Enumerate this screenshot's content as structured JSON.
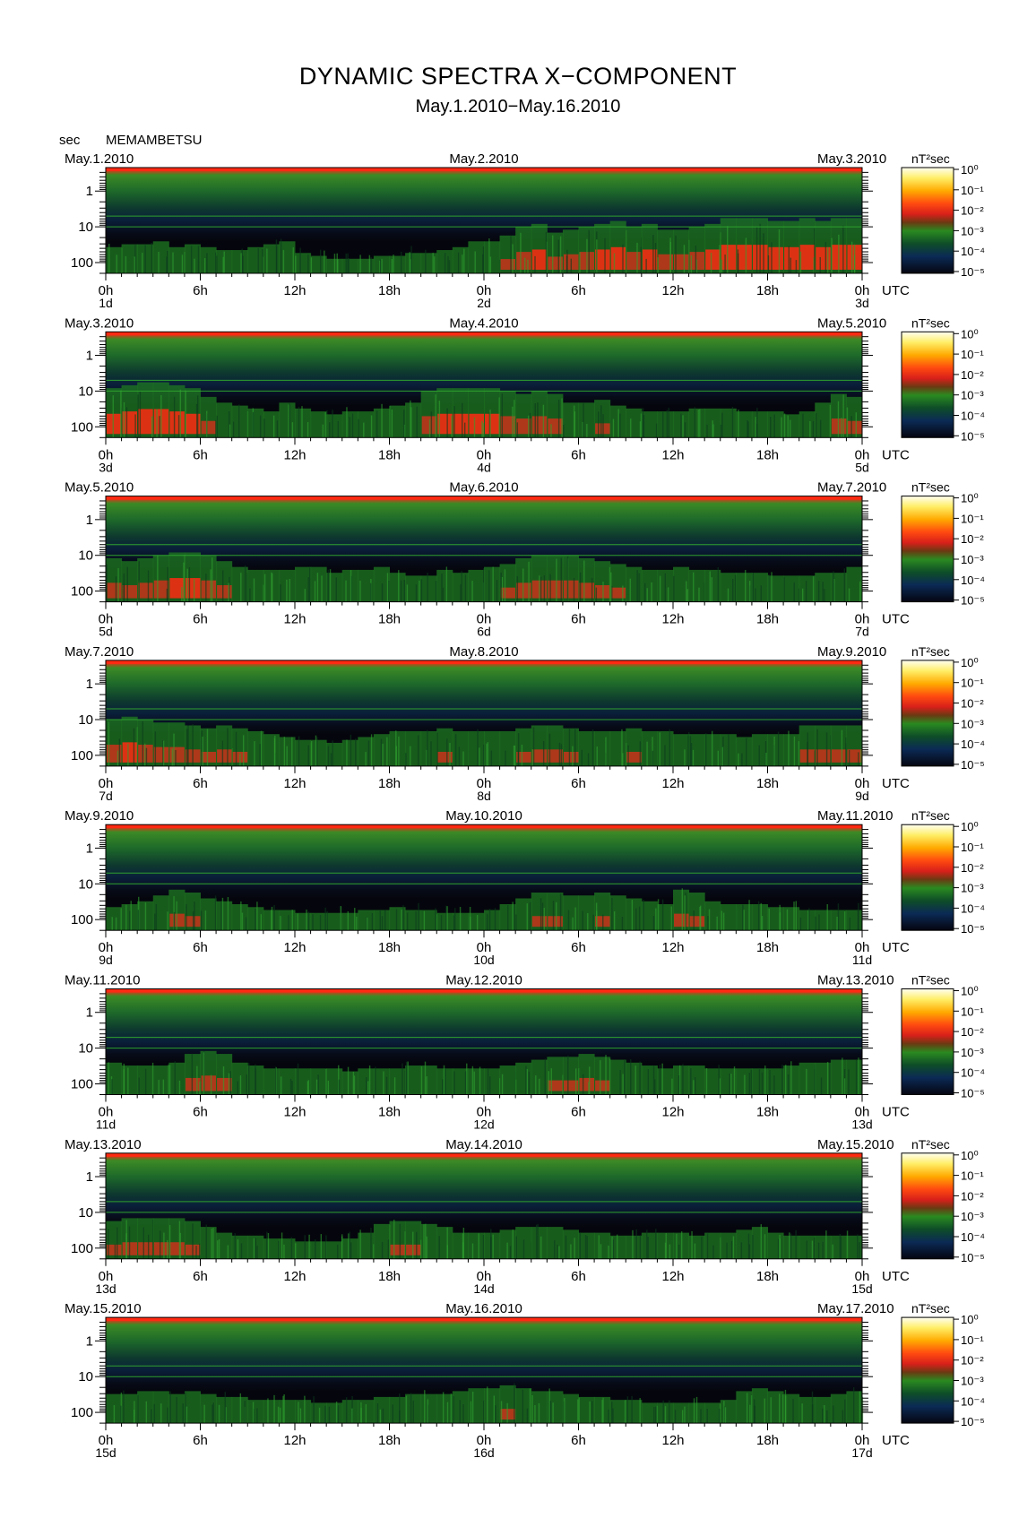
{
  "title": "DYNAMIC SPECTRA X−COMPONENT",
  "subtitle": "May.1.2010−May.16.2010",
  "station": "MEMAMBETSU",
  "y_unit": "sec",
  "x_unit": "UTC",
  "colorbar_unit": "nT²sec",
  "chart_data": {
    "type": "heatmap",
    "title": "DYNAMIC SPECTRA X−COMPONENT",
    "subtitle": "May.1.2010−May.16.2010",
    "station": "MEMAMBETSU",
    "ylabel": "sec",
    "y_scale": "log",
    "y_ticks": [
      "1",
      "10",
      "100"
    ],
    "x_ticks": [
      "0h",
      "6h",
      "12h",
      "18h",
      "0h",
      "6h",
      "12h",
      "18h",
      "0h"
    ],
    "xlabel": "UTC",
    "colorbar": {
      "label": "nT²sec",
      "scale": "log",
      "ticks": [
        "10⁰",
        "10⁻¹",
        "10⁻²",
        "10⁻³",
        "10⁻⁴",
        "10⁻⁵"
      ],
      "colors": [
        "#ffff99",
        "#ffcc00",
        "#ff6600",
        "#e0201a",
        "#8a3a10",
        "#1f8a1f",
        "#0d4d2a",
        "#0a2a55",
        "#050510"
      ]
    },
    "panels": [
      {
        "start_date": "May.1.2010",
        "mid_date": "May.2.2010",
        "end_date": "May.3.2010",
        "day_labels": [
          "1d",
          "2d",
          "3d"
        ],
        "activity": [
          0.45,
          0.5,
          0.5,
          0.55,
          0.45,
          0.5,
          0.45,
          0.4,
          0.4,
          0.45,
          0.5,
          0.55,
          0.35,
          0.3,
          0.25,
          0.25,
          0.25,
          0.3,
          0.3,
          0.35,
          0.35,
          0.4,
          0.45,
          0.55,
          0.55,
          0.65,
          0.8,
          0.85,
          0.7,
          0.75,
          0.8,
          0.85,
          0.9,
          0.8,
          0.85,
          0.75,
          0.75,
          0.8,
          0.85,
          0.95,
          0.95,
          0.95,
          0.9,
          0.9,
          0.95,
          0.9,
          0.95,
          0.95
        ]
      },
      {
        "start_date": "May.3.2010",
        "mid_date": "May.4.2010",
        "end_date": "May.5.2010",
        "day_labels": [
          "3d",
          "4d",
          "5d"
        ],
        "activity": [
          0.85,
          0.9,
          0.95,
          0.95,
          0.9,
          0.85,
          0.7,
          0.6,
          0.55,
          0.5,
          0.45,
          0.6,
          0.5,
          0.45,
          0.4,
          0.45,
          0.45,
          0.5,
          0.55,
          0.6,
          0.8,
          0.85,
          0.85,
          0.85,
          0.85,
          0.8,
          0.75,
          0.8,
          0.75,
          0.6,
          0.6,
          0.65,
          0.55,
          0.5,
          0.45,
          0.45,
          0.45,
          0.5,
          0.5,
          0.5,
          0.45,
          0.45,
          0.45,
          0.4,
          0.45,
          0.6,
          0.75,
          0.7
        ]
      },
      {
        "start_date": "May.5.2010",
        "mid_date": "May.6.2010",
        "end_date": "May.7.2010",
        "day_labels": [
          "5d",
          "6d",
          "7d"
        ],
        "activity": [
          0.75,
          0.7,
          0.75,
          0.8,
          0.85,
          0.85,
          0.8,
          0.7,
          0.6,
          0.55,
          0.55,
          0.55,
          0.6,
          0.6,
          0.5,
          0.55,
          0.55,
          0.6,
          0.5,
          0.45,
          0.45,
          0.55,
          0.5,
          0.55,
          0.6,
          0.65,
          0.75,
          0.8,
          0.8,
          0.8,
          0.75,
          0.7,
          0.65,
          0.6,
          0.55,
          0.55,
          0.6,
          0.55,
          0.55,
          0.5,
          0.5,
          0.5,
          0.45,
          0.45,
          0.45,
          0.5,
          0.5,
          0.6
        ]
      },
      {
        "start_date": "May.7.2010",
        "mid_date": "May.8.2010",
        "end_date": "May.9.2010",
        "day_labels": [
          "7d",
          "8d",
          "9d"
        ],
        "activity": [
          0.8,
          0.85,
          0.8,
          0.75,
          0.75,
          0.7,
          0.65,
          0.7,
          0.65,
          0.6,
          0.55,
          0.5,
          0.45,
          0.45,
          0.4,
          0.45,
          0.5,
          0.55,
          0.6,
          0.6,
          0.6,
          0.65,
          0.6,
          0.6,
          0.6,
          0.6,
          0.65,
          0.7,
          0.7,
          0.65,
          0.6,
          0.6,
          0.6,
          0.65,
          0.6,
          0.6,
          0.55,
          0.55,
          0.55,
          0.55,
          0.5,
          0.55,
          0.55,
          0.55,
          0.7,
          0.7,
          0.7,
          0.7
        ]
      },
      {
        "start_date": "May.9.2010",
        "mid_date": "May.10.2010",
        "end_date": "May.11.2010",
        "day_labels": [
          "9d",
          "10d",
          "11d"
        ],
        "activity": [
          0.4,
          0.45,
          0.5,
          0.6,
          0.7,
          0.65,
          0.55,
          0.5,
          0.45,
          0.4,
          0.35,
          0.35,
          0.3,
          0.3,
          0.3,
          0.3,
          0.35,
          0.35,
          0.4,
          0.35,
          0.35,
          0.3,
          0.3,
          0.3,
          0.35,
          0.45,
          0.55,
          0.65,
          0.65,
          0.6,
          0.6,
          0.65,
          0.6,
          0.55,
          0.5,
          0.45,
          0.7,
          0.65,
          0.5,
          0.45,
          0.45,
          0.45,
          0.4,
          0.4,
          0.35,
          0.35,
          0.35,
          0.35
        ]
      },
      {
        "start_date": "May.11.2010",
        "mid_date": "May.12.2010",
        "end_date": "May.13.2010",
        "day_labels": [
          "11d",
          "12d",
          "13d"
        ],
        "activity": [
          0.55,
          0.5,
          0.5,
          0.5,
          0.55,
          0.7,
          0.75,
          0.7,
          0.55,
          0.5,
          0.45,
          0.45,
          0.45,
          0.45,
          0.45,
          0.4,
          0.45,
          0.45,
          0.45,
          0.5,
          0.5,
          0.45,
          0.45,
          0.45,
          0.45,
          0.5,
          0.55,
          0.6,
          0.65,
          0.65,
          0.7,
          0.65,
          0.6,
          0.55,
          0.5,
          0.45,
          0.5,
          0.5,
          0.45,
          0.45,
          0.45,
          0.45,
          0.45,
          0.5,
          0.55,
          0.55,
          0.6,
          0.6
        ]
      },
      {
        "start_date": "May.13.2010",
        "mid_date": "May.14.2010",
        "end_date": "May.15.2010",
        "day_labels": [
          "13d",
          "14d",
          "15d"
        ],
        "activity": [
          0.65,
          0.7,
          0.7,
          0.7,
          0.7,
          0.65,
          0.55,
          0.45,
          0.4,
          0.4,
          0.35,
          0.35,
          0.3,
          0.3,
          0.3,
          0.35,
          0.45,
          0.6,
          0.65,
          0.65,
          0.6,
          0.55,
          0.45,
          0.45,
          0.45,
          0.5,
          0.55,
          0.55,
          0.55,
          0.5,
          0.45,
          0.45,
          0.4,
          0.4,
          0.45,
          0.45,
          0.45,
          0.4,
          0.45,
          0.45,
          0.5,
          0.55,
          0.45,
          0.4,
          0.4,
          0.4,
          0.4,
          0.4
        ]
      },
      {
        "start_date": "May.15.2010",
        "mid_date": "May.16.2010",
        "end_date": "May.17.2010",
        "day_labels": [
          "15d",
          "16d",
          "17d"
        ],
        "activity": [
          0.5,
          0.5,
          0.55,
          0.55,
          0.5,
          0.55,
          0.5,
          0.45,
          0.45,
          0.4,
          0.4,
          0.4,
          0.4,
          0.35,
          0.35,
          0.4,
          0.4,
          0.45,
          0.45,
          0.5,
          0.5,
          0.5,
          0.55,
          0.6,
          0.6,
          0.65,
          0.6,
          0.55,
          0.55,
          0.5,
          0.45,
          0.45,
          0.4,
          0.4,
          0.35,
          0.35,
          0.35,
          0.35,
          0.35,
          0.4,
          0.55,
          0.6,
          0.55,
          0.5,
          0.45,
          0.45,
          0.5,
          0.55
        ]
      }
    ]
  }
}
